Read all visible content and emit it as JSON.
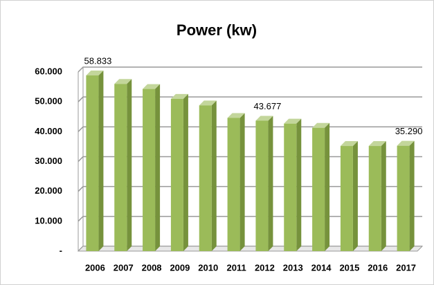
{
  "chart_data": {
    "type": "bar3d",
    "title": "Power (kw)",
    "categories": [
      "2006",
      "2007",
      "2008",
      "2009",
      "2010",
      "2011",
      "2012",
      "2013",
      "2014",
      "2015",
      "2016",
      "2017"
    ],
    "values": [
      58833,
      56000,
      54300,
      51000,
      48800,
      44600,
      43677,
      42700,
      41300,
      35200,
      35200,
      35290
    ],
    "value_labels": [
      "58.833",
      null,
      null,
      null,
      null,
      null,
      "43.677",
      null,
      null,
      null,
      null,
      "35.290"
    ],
    "color": "#9bbb59",
    "ylim": [
      0,
      60000
    ],
    "yticks": [
      {
        "value": 0,
        "label": "-"
      },
      {
        "value": 10000,
        "label": "10.000"
      },
      {
        "value": 20000,
        "label": "20.000"
      },
      {
        "value": 30000,
        "label": "30.000"
      },
      {
        "value": 40000,
        "label": "40.000"
      },
      {
        "value": 50000,
        "label": "50.000"
      },
      {
        "value": 60000,
        "label": "60.000"
      }
    ],
    "grid": true
  }
}
